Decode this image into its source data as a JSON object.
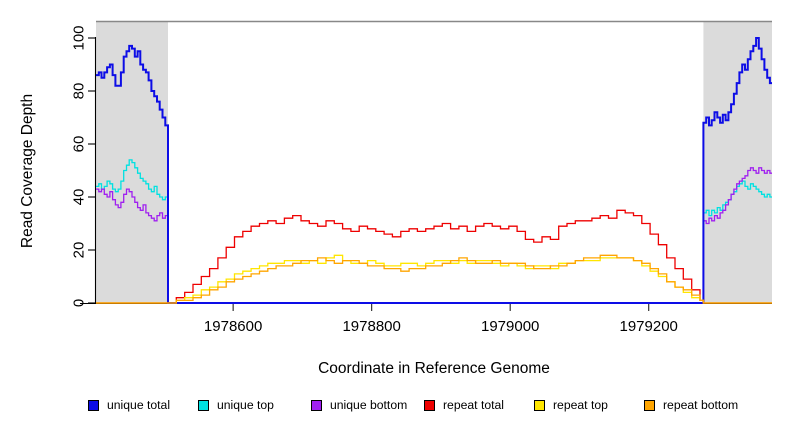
{
  "figure": {
    "kind": "R coverage plot",
    "background": "#FFFFFF"
  },
  "chart_data": {
    "type": "line",
    "title": "",
    "xlabel": "Coordinate in Reference Genome",
    "ylabel": "Read Coverage Depth",
    "xlim": [
      1978402,
      1979378
    ],
    "ylim": [
      0,
      106
    ],
    "x_ticks": [
      1978600,
      1978800,
      1979000,
      1979200
    ],
    "y_ticks": [
      0,
      20,
      40,
      60,
      80,
      100
    ],
    "grid": false,
    "line_style": "step-after",
    "legend_position": "bottom",
    "frame": {
      "top_border_color": "#888888",
      "axis_color": "#000000"
    },
    "shaded_regions": [
      {
        "name": "left-unique-flank",
        "x0": 1978402,
        "x1": 1978506,
        "fill": "#DBDBDB"
      },
      {
        "name": "right-unique-flank",
        "x0": 1979279,
        "x1": 1979378,
        "fill": "#DBDBDB"
      }
    ],
    "series": [
      {
        "name": "unique top",
        "color": "#00E1E1",
        "width": 1.3,
        "segments": [
          {
            "x0": 1978402,
            "dx": 4,
            "values": [
              44,
              45,
              43,
              44,
              46,
              45,
              43,
              42,
              43,
              46,
              50,
              52,
              54,
              53,
              51,
              49,
              47,
              46,
              45,
              43,
              42,
              44,
              41,
              40,
              39,
              40
            ]
          },
          {
            "x0": 1978506,
            "dx": 773,
            "values": [
              0,
              0
            ]
          },
          {
            "x0": 1979279,
            "dx": 4,
            "values": [
              34,
              35,
              33,
              35,
              34,
              36,
              35,
              37,
              38,
              39,
              41,
              42,
              44,
              45,
              46,
              44,
              43,
              45,
              44,
              43,
              42,
              41,
              40,
              41,
              40
            ]
          }
        ]
      },
      {
        "name": "unique bottom",
        "color": "#A020F0",
        "width": 1.3,
        "segments": [
          {
            "x0": 1978402,
            "dx": 4,
            "values": [
              43,
              42,
              43,
              41,
              40,
              42,
              39,
              37,
              36,
              38,
              41,
              43,
              42,
              40,
              38,
              36,
              35,
              37,
              34,
              33,
              32,
              31,
              33,
              34,
              32,
              33
            ]
          },
          {
            "x0": 1978506,
            "dx": 773,
            "values": [
              0,
              0
            ]
          },
          {
            "x0": 1979279,
            "dx": 4,
            "values": [
              31,
              30,
              32,
              31,
              33,
              32,
              34,
              35,
              37,
              39,
              41,
              43,
              45,
              46,
              47,
              48,
              50,
              51,
              50,
              49,
              51,
              50,
              49,
              50,
              49
            ]
          }
        ]
      },
      {
        "name": "unique total",
        "color": "#0D0DE6",
        "width": 2,
        "segments": [
          {
            "x0": 1978402,
            "dx": 4,
            "values": [
              86,
              87,
              85,
              87,
              89,
              90,
              86,
              82,
              82,
              87,
              93,
              95,
              97,
              96,
              93,
              95,
              90,
              88,
              87,
              84,
              80,
              78,
              76,
              73,
              70,
              67
            ]
          },
          {
            "x0": 1978506,
            "dx": 773,
            "values": [
              0,
              0
            ]
          },
          {
            "x0": 1979279,
            "dx": 4,
            "values": [
              68,
              70,
              67,
              69,
              72,
              70,
              68,
              71,
              69,
              72,
              75,
              79,
              83,
              87,
              90,
              88,
              92,
              95,
              97,
              100,
              96,
              92,
              88,
              85,
              83
            ]
          }
        ]
      },
      {
        "name": "repeat total",
        "color": "#EE0000",
        "width": 1.3,
        "segments": [
          {
            "x0": 1978402,
            "dx": 104,
            "values": [
              0,
              0
            ]
          },
          {
            "x0": 1978506,
            "dx": 12,
            "values": [
              0,
              2,
              4,
              7,
              10,
              13,
              17,
              21,
              25,
              27,
              29,
              30,
              31,
              30,
              32,
              33,
              31,
              30,
              29,
              31,
              30,
              28,
              27,
              29,
              28,
              27,
              26,
              25,
              27,
              28,
              27,
              28,
              29,
              30,
              28,
              29,
              27,
              29,
              30,
              29,
              28,
              29,
              27,
              24,
              23,
              25,
              24,
              29,
              30,
              31,
              31,
              32,
              33,
              32,
              35,
              34,
              33,
              30,
              26,
              22,
              17,
              13,
              9,
              5,
              1
            ]
          },
          {
            "x0": 1979279,
            "dx": 97,
            "values": [
              0,
              0
            ]
          }
        ]
      },
      {
        "name": "repeat top",
        "color": "#FFE600",
        "width": 1.3,
        "segments": [
          {
            "x0": 1978402,
            "dx": 104,
            "values": [
              0,
              0
            ]
          },
          {
            "x0": 1978506,
            "dx": 12,
            "values": [
              0,
              1,
              2,
              3,
              5,
              6,
              8,
              9,
              11,
              12,
              13,
              14,
              15,
              15,
              16,
              16,
              15,
              16,
              15,
              17,
              18,
              16,
              15,
              15,
              16,
              15,
              14,
              14,
              15,
              15,
              14,
              15,
              16,
              16,
              15,
              16,
              15,
              16,
              16,
              15,
              14,
              15,
              14,
              13,
              14,
              14,
              13,
              15,
              15,
              16,
              16,
              16,
              17,
              17,
              17,
              17,
              16,
              14,
              12,
              10,
              8,
              6,
              4,
              2,
              1
            ]
          },
          {
            "x0": 1979279,
            "dx": 97,
            "values": [
              0,
              0
            ]
          }
        ]
      },
      {
        "name": "repeat bottom",
        "color": "#FFA500",
        "width": 1.3,
        "segments": [
          {
            "x0": 1978402,
            "dx": 104,
            "values": [
              0,
              0
            ]
          },
          {
            "x0": 1978506,
            "dx": 12,
            "values": [
              0,
              1,
              1,
              2,
              3,
              5,
              6,
              8,
              9,
              10,
              11,
              12,
              13,
              14,
              14,
              15,
              16,
              16,
              17,
              16,
              15,
              16,
              16,
              15,
              14,
              14,
              13,
              13,
              12,
              13,
              13,
              14,
              14,
              15,
              16,
              17,
              16,
              15,
              15,
              16,
              15,
              15,
              15,
              14,
              13,
              13,
              14,
              14,
              15,
              16,
              17,
              17,
              18,
              18,
              17,
              17,
              16,
              15,
              13,
              11,
              8,
              6,
              5,
              3,
              1
            ]
          },
          {
            "x0": 1979279,
            "dx": 97,
            "values": [
              0,
              0
            ]
          }
        ]
      }
    ]
  },
  "legend": {
    "items": [
      {
        "label": "unique total",
        "color": "#0D0DE6"
      },
      {
        "label": "unique top",
        "color": "#00E1E1"
      },
      {
        "label": "unique bottom",
        "color": "#A020F0"
      },
      {
        "label": "repeat total",
        "color": "#EE0000"
      },
      {
        "label": "repeat top",
        "color": "#FFE600"
      },
      {
        "label": "repeat bottom",
        "color": "#FFA500"
      }
    ]
  }
}
